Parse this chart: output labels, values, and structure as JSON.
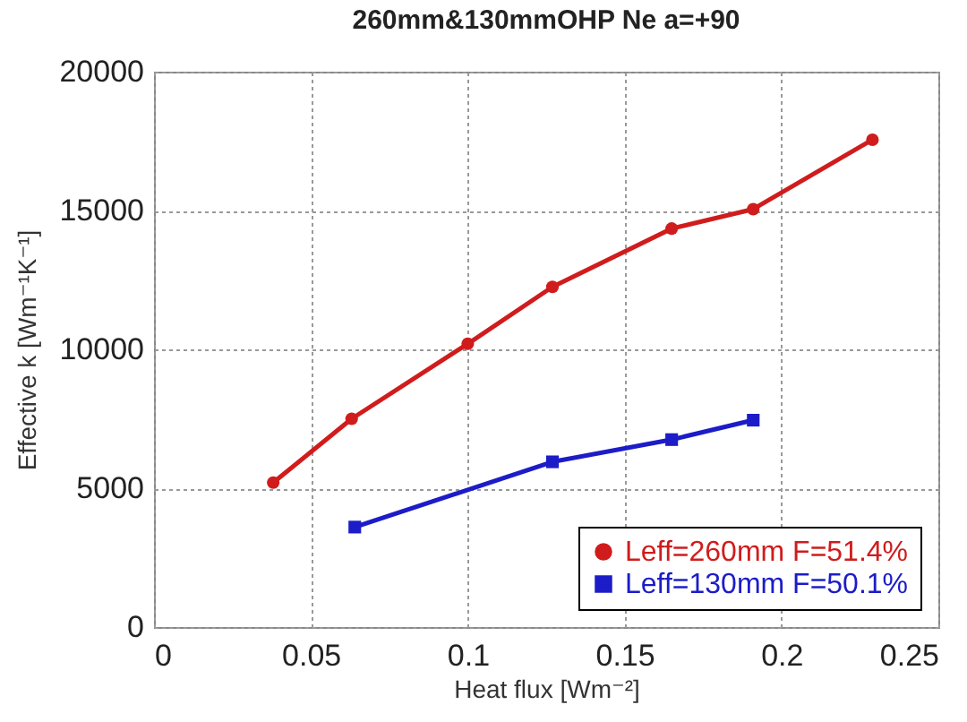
{
  "chart_data": {
    "type": "line",
    "title": "260mm&130mmOHP  Ne  a=+90",
    "xlabel": "Heat flux [Wm⁻²]",
    "ylabel": "Effective k [Wm⁻¹K⁻¹]",
    "series": [
      {
        "name": "Leff=260mm F=51.4%",
        "color": "#d01c1c",
        "marker": "circle",
        "x": [
          0.038,
          0.063,
          0.1,
          0.127,
          0.165,
          0.191,
          0.229
        ],
        "values": [
          5200,
          7500,
          10200,
          12250,
          14350,
          15050,
          17550
        ]
      },
      {
        "name": "Leff=130mm F=50.1%",
        "color": "#1c1cc8",
        "marker": "square",
        "x": [
          0.064,
          0.127,
          0.165,
          0.191
        ],
        "values": [
          3600,
          5950,
          6750,
          7450
        ]
      }
    ],
    "xlim": [
      0,
      0.25
    ],
    "xticks": [
      0,
      0.05,
      0.1,
      0.15,
      0.2,
      0.25
    ],
    "ylim": [
      0,
      20000
    ],
    "yticks": [
      0,
      5000,
      10000,
      15000,
      20000
    ],
    "grid": true,
    "legend": "bottom right",
    "line_style": "solid"
  }
}
